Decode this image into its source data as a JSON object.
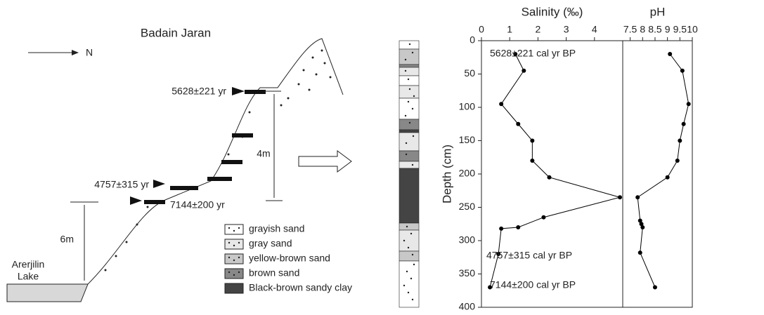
{
  "diagram": {
    "title": "Badain Jaran",
    "north": "N",
    "dates": [
      "5628±221 yr",
      "4757±315 yr",
      "7144±200 yr"
    ],
    "thickness": [
      "4m",
      "6m"
    ],
    "lake": [
      "Arerjilin",
      "Lake"
    ],
    "legend": [
      "grayish sand",
      "gray sand",
      "yellow-brown sand",
      "brown sand",
      "Black-brown sandy clay"
    ]
  },
  "chart_data": [
    {
      "type": "line",
      "title": "Salinity (‰)",
      "y_label": "Depth (cm)",
      "values": [
        1.2,
        1.5,
        0.7,
        1.3,
        1.8,
        1.8,
        2.4,
        4.9,
        2.2,
        1.3,
        0.7,
        0.6,
        0.3
      ],
      "depths": [
        20,
        45,
        95,
        125,
        150,
        180,
        205,
        235,
        265,
        280,
        282,
        320,
        370
      ],
      "xlim": [
        0,
        5
      ],
      "xticks": [
        0,
        1,
        2,
        3,
        4
      ],
      "ylim": [
        0,
        400
      ],
      "yticks": [
        0,
        50,
        100,
        150,
        200,
        250,
        300,
        350,
        400
      ],
      "annotations": [
        "5628±221 cal yr BP",
        "4757±315 cal yr BP",
        "7144±200 cal yr BP"
      ],
      "color": "#000000"
    },
    {
      "type": "line",
      "title": "pH",
      "values": [
        9.1,
        9.6,
        9.85,
        9.65,
        9.5,
        9.4,
        9.0,
        7.8,
        7.9,
        7.95,
        8.0,
        7.9,
        8.5
      ],
      "depths": [
        20,
        45,
        95,
        125,
        150,
        180,
        205,
        235,
        270,
        275,
        280,
        318,
        370
      ],
      "xlim": [
        7.2,
        10
      ],
      "xticks": [
        7.5,
        8,
        8.5,
        9,
        9.5,
        10
      ],
      "ylim": [
        0,
        400
      ],
      "color": "#000000"
    }
  ]
}
